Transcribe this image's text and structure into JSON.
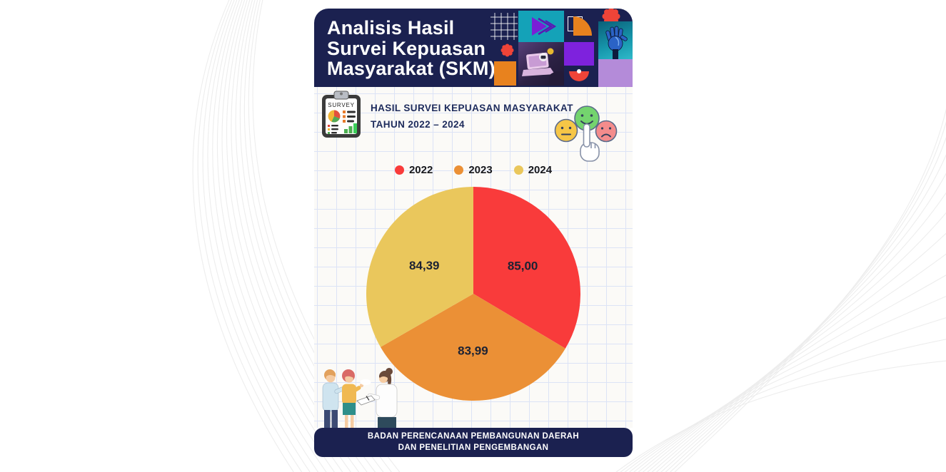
{
  "header": {
    "title_lines": [
      "Analisis Hasil",
      "Survei Kepuasan",
      "Masyarakat (SKM)"
    ]
  },
  "subtitle": {
    "line1": "HASIL SURVEI KEPUASAN MASYARAKAT",
    "line2": "TAHUN 2022 – 2024",
    "clipboard_icon_label": "SURVEY"
  },
  "chart_data": {
    "type": "pie",
    "title": "Hasil Survei Kepuasan Masyarakat Tahun 2022 – 2024",
    "categories": [
      "2022",
      "2023",
      "2024"
    ],
    "values": [
      85.0,
      83.99,
      84.39
    ],
    "value_labels": [
      "85,00",
      "83,99",
      "84,39"
    ],
    "colors": [
      "#F93B3B",
      "#EB9036",
      "#EAC75C"
    ],
    "legend_position": "top",
    "start_angle": "12 o'clock, clockwise",
    "label_radius_fraction": 0.53
  },
  "footer": {
    "line1": "BADAN PERENCANAAN PEMBANGUNAN DAERAH",
    "line2": "DAN PENELITIAN PENGEMBANGAN"
  },
  "colors": {
    "navy": "#1B2150",
    "body_background": "#FBFAF7",
    "grid_line": "#DCE3F6",
    "teal_tile": "#14A2B8",
    "purple_tile": "#7E22DD",
    "lilac_tile": "#B48BD9",
    "orange_accent": "#E8821E",
    "red_accent": "#EF4438",
    "face_yellow": "#F6C647",
    "face_green": "#74D46E",
    "face_red": "#F48C8C"
  }
}
